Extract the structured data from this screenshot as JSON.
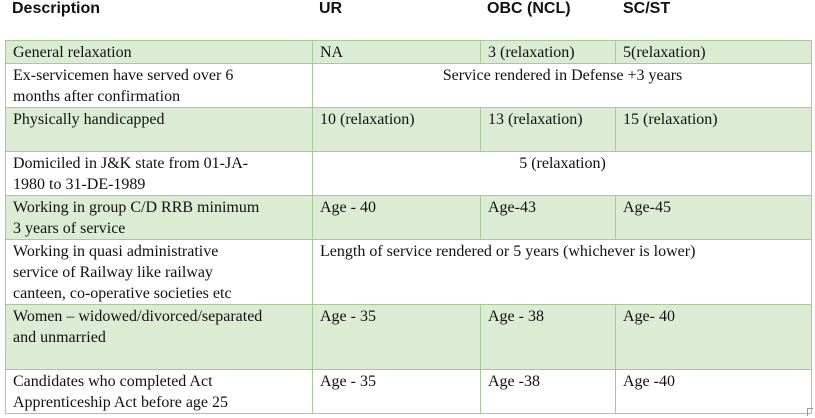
{
  "headers": {
    "description": "Description",
    "ur": "UR",
    "obc": "OBC (NCL)",
    "scst": "SC/ST"
  },
  "rows": [
    {
      "desc": [
        "General relaxation"
      ],
      "ur": "NA",
      "obc": "3 (relaxation)",
      "scst": "5(relaxation)"
    },
    {
      "desc": [
        "Ex-servicemen have served over 6",
        "months after confirmation"
      ],
      "merged": "Service rendered in Defense +3 years"
    },
    {
      "desc": [
        "Physically handicapped"
      ],
      "ur": "10 (relaxation)",
      "obc": "13 (relaxation)",
      "scst": "15 (relaxation)"
    },
    {
      "desc": [
        "Domiciled in J&K state from 01-JA-",
        "1980 to 31-DE-1989"
      ],
      "merged": "5 (relaxation)"
    },
    {
      "desc": [
        "Working in group C/D RRB minimum",
        "3 years of service"
      ],
      "ur": "Age - 40",
      "obc": "Age-43",
      "scst": "Age-45"
    },
    {
      "desc": [
        "Working in quasi administrative",
        "service of Railway like railway",
        "canteen, co-operative societies etc"
      ],
      "merged": "Length of service rendered or 5 years (whichever is lower)"
    },
    {
      "desc": [
        "Women – widowed/divorced/separated",
        "and unmarried"
      ],
      "ur": "Age - 35",
      "obc": "Age - 38",
      "scst": "Age- 40"
    },
    {
      "desc": [
        "Candidates who completed Act",
        "Apprenticeship Act before age 25"
      ],
      "ur": "Age - 35",
      "obc": "Age -38",
      "scst": "Age -40"
    }
  ]
}
